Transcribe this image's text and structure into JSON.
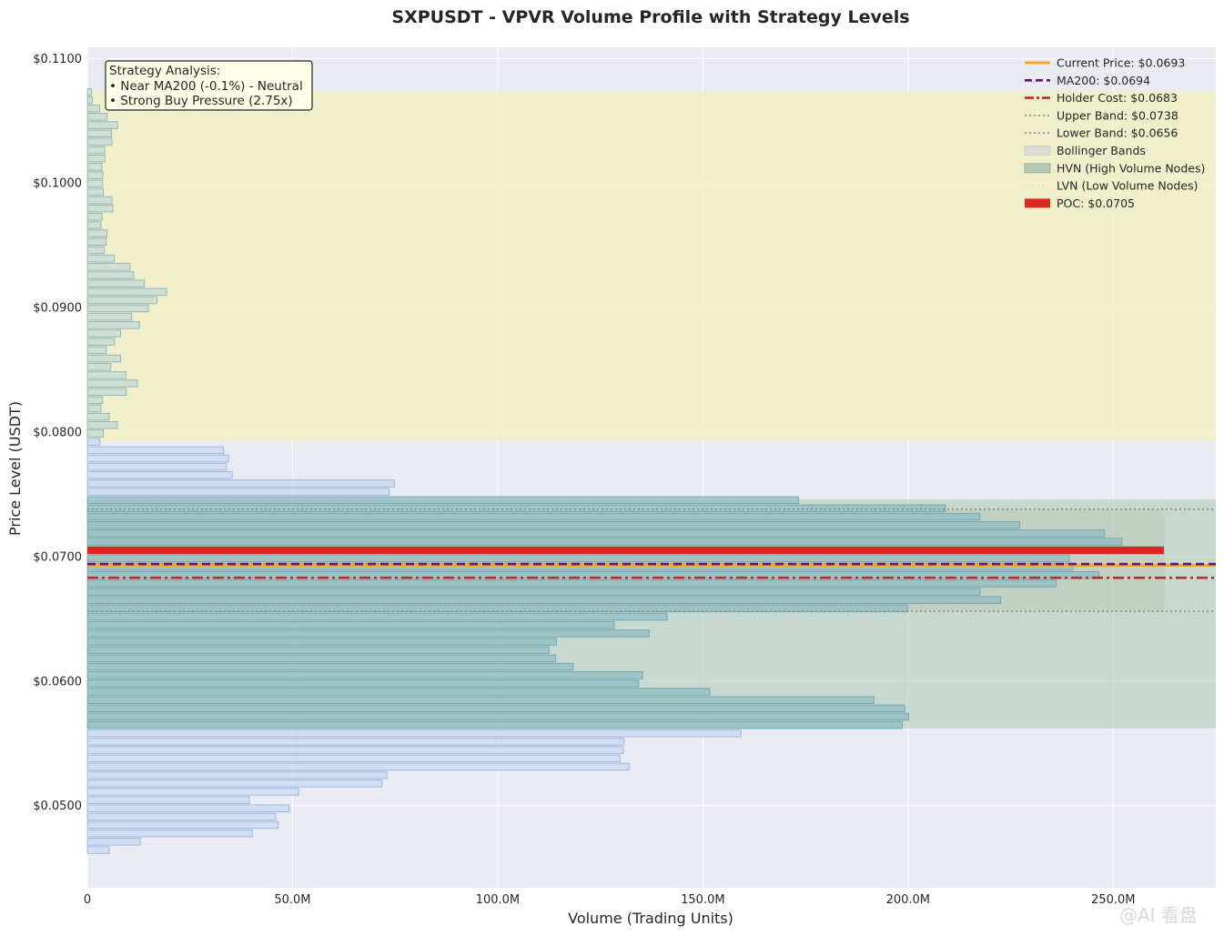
{
  "chart_data": {
    "type": "bar",
    "orientation": "horizontal",
    "title": "SXPUSDT - VPVR Volume Profile with Strategy Levels",
    "xlabel": "Volume (Trading Units)",
    "ylabel": "Price Level (USDT)",
    "xlim": [
      0,
      275000000
    ],
    "ylim": [
      0.0434,
      0.1109
    ],
    "x_ticks": [
      0,
      50000000,
      100000000,
      150000000,
      200000000,
      250000000
    ],
    "x_tick_labels": [
      "0",
      "50.0M",
      "100.0M",
      "150.0M",
      "200.0M",
      "250.0M"
    ],
    "y_ticks": [
      0.05,
      0.06,
      0.07,
      0.08,
      0.09,
      0.1,
      0.11
    ],
    "y_tick_labels": [
      "$0.0500",
      "$0.0600",
      "$0.0700",
      "$0.0800",
      "$0.0900",
      "$0.1000",
      "$0.1100"
    ],
    "grid": true,
    "legend_position": "top-right",
    "bin_height": 0.000669,
    "bins": [
      {
        "price": 0.04643,
        "volume": 5300000
      },
      {
        "price": 0.0471,
        "volume": 12900000
      },
      {
        "price": 0.04777,
        "volume": 40200000
      },
      {
        "price": 0.04844,
        "volume": 46500000
      },
      {
        "price": 0.04911,
        "volume": 45900000
      },
      {
        "price": 0.04978,
        "volume": 49200000
      },
      {
        "price": 0.05044,
        "volume": 39500000
      },
      {
        "price": 0.05111,
        "volume": 51500000
      },
      {
        "price": 0.05178,
        "volume": 71800000
      },
      {
        "price": 0.05245,
        "volume": 73000000
      },
      {
        "price": 0.05312,
        "volume": 132000000
      },
      {
        "price": 0.05379,
        "volume": 129800000
      },
      {
        "price": 0.05446,
        "volume": 130600000
      },
      {
        "price": 0.05513,
        "volume": 130800000
      },
      {
        "price": 0.0558,
        "volume": 159300000
      },
      {
        "price": 0.05647,
        "volume": 198600000
      },
      {
        "price": 0.05714,
        "volume": 200100000
      },
      {
        "price": 0.05781,
        "volume": 199200000
      },
      {
        "price": 0.05847,
        "volume": 191700000
      },
      {
        "price": 0.05914,
        "volume": 151700000
      },
      {
        "price": 0.05981,
        "volume": 134300000
      },
      {
        "price": 0.06048,
        "volume": 135300000
      },
      {
        "price": 0.06115,
        "volume": 118400000
      },
      {
        "price": 0.06182,
        "volume": 114100000
      },
      {
        "price": 0.06249,
        "volume": 112500000
      },
      {
        "price": 0.06316,
        "volume": 114300000
      },
      {
        "price": 0.06383,
        "volume": 136900000
      },
      {
        "price": 0.0645,
        "volume": 128400000
      },
      {
        "price": 0.06517,
        "volume": 141300000
      },
      {
        "price": 0.06584,
        "volume": 199900000
      },
      {
        "price": 0.0665,
        "volume": 222600000
      },
      {
        "price": 0.06717,
        "volume": 217500000
      },
      {
        "price": 0.06784,
        "volume": 236100000
      },
      {
        "price": 0.06851,
        "volume": 246500000
      },
      {
        "price": 0.06918,
        "volume": 240200000
      },
      {
        "price": 0.06985,
        "volume": 239300000
      },
      {
        "price": 0.07052,
        "volume": 262300000
      },
      {
        "price": 0.07119,
        "volume": 252100000
      },
      {
        "price": 0.07186,
        "volume": 247900000
      },
      {
        "price": 0.07253,
        "volume": 227200000
      },
      {
        "price": 0.0732,
        "volume": 217500000
      },
      {
        "price": 0.07387,
        "volume": 209100000
      },
      {
        "price": 0.07453,
        "volume": 173300000
      },
      {
        "price": 0.0752,
        "volume": 73600000
      },
      {
        "price": 0.07587,
        "volume": 74800000
      },
      {
        "price": 0.07654,
        "volume": 35300000
      },
      {
        "price": 0.07721,
        "volume": 33900000
      },
      {
        "price": 0.07788,
        "volume": 34400000
      },
      {
        "price": 0.07855,
        "volume": 33200000
      },
      {
        "price": 0.07922,
        "volume": 3000000
      },
      {
        "price": 0.07989,
        "volume": 3900000
      },
      {
        "price": 0.08056,
        "volume": 7300000
      },
      {
        "price": 0.08123,
        "volume": 5300000
      },
      {
        "price": 0.0819,
        "volume": 3300000
      },
      {
        "price": 0.08256,
        "volume": 3700000
      },
      {
        "price": 0.08323,
        "volume": 9500000
      },
      {
        "price": 0.0839,
        "volume": 12200000
      },
      {
        "price": 0.08457,
        "volume": 9400000
      },
      {
        "price": 0.08524,
        "volume": 5700000
      },
      {
        "price": 0.08591,
        "volume": 8100000
      },
      {
        "price": 0.08658,
        "volume": 4600000
      },
      {
        "price": 0.08725,
        "volume": 6600000
      },
      {
        "price": 0.08792,
        "volume": 8100000
      },
      {
        "price": 0.08859,
        "volume": 12700000
      },
      {
        "price": 0.08926,
        "volume": 10800000
      },
      {
        "price": 0.08993,
        "volume": 14900000
      },
      {
        "price": 0.09059,
        "volume": 17000000
      },
      {
        "price": 0.09126,
        "volume": 19300000
      },
      {
        "price": 0.09193,
        "volume": 13900000
      },
      {
        "price": 0.0926,
        "volume": 11300000
      },
      {
        "price": 0.09327,
        "volume": 10400000
      },
      {
        "price": 0.09394,
        "volume": 6600000
      },
      {
        "price": 0.09461,
        "volume": 4100000
      },
      {
        "price": 0.09528,
        "volume": 4600000
      },
      {
        "price": 0.09595,
        "volume": 4800000
      },
      {
        "price": 0.09662,
        "volume": 3300000
      },
      {
        "price": 0.09729,
        "volume": 3600000
      },
      {
        "price": 0.09796,
        "volume": 6200000
      },
      {
        "price": 0.09862,
        "volume": 6000000
      },
      {
        "price": 0.09929,
        "volume": 3900000
      },
      {
        "price": 0.09996,
        "volume": 3700000
      },
      {
        "price": 0.10063,
        "volume": 3800000
      },
      {
        "price": 0.1013,
        "volume": 3600000
      },
      {
        "price": 0.10197,
        "volume": 4300000
      },
      {
        "price": 0.10264,
        "volume": 4200000
      },
      {
        "price": 0.10331,
        "volume": 6000000
      },
      {
        "price": 0.10398,
        "volume": 5900000
      },
      {
        "price": 0.10465,
        "volume": 7400000
      },
      {
        "price": 0.10532,
        "volume": 4800000
      },
      {
        "price": 0.10599,
        "volume": 3000000
      },
      {
        "price": 0.10665,
        "volume": 1200000
      },
      {
        "price": 0.10732,
        "volume": 1000000
      }
    ],
    "zones": {
      "hvn": [
        [
          0.0562,
          0.0746
        ]
      ],
      "lvn": [
        [
          0.0793,
          0.1074
        ]
      ],
      "bollinger_bands": [
        0.0656,
        0.0738
      ]
    },
    "bollinger_band_volume_extent": 262500000,
    "levels": {
      "current_price": 0.0693,
      "ma200": 0.0694,
      "holder_cost": 0.0683,
      "upper_band": 0.0738,
      "lower_band": 0.0656,
      "poc": 0.0705
    },
    "legend": [
      {
        "key": "current_price",
        "label": "Current Price: $0.0693",
        "style": "solid",
        "color": "#f5a623"
      },
      {
        "key": "ma200",
        "label": "MA200: $0.0694",
        "style": "dashed",
        "color": "#6a0d83"
      },
      {
        "key": "holder_cost",
        "label": "Holder Cost: $0.0683",
        "style": "dashdot",
        "color": "#b03030"
      },
      {
        "key": "upper_band",
        "label": "Upper Band: $0.0738",
        "style": "dotted",
        "color": "#8c8c8c"
      },
      {
        "key": "lower_band",
        "label": "Lower Band: $0.0656",
        "style": "dotted",
        "color": "#8c8c8c"
      },
      {
        "key": "bollinger",
        "label": "Bollinger Bands",
        "style": "patch",
        "color": "#d9dccf"
      },
      {
        "key": "hvn",
        "label": "HVN (High Volume Nodes)",
        "style": "hatch",
        "color": "#b7c7b5"
      },
      {
        "key": "lvn",
        "label": "LVN (Low Volume Nodes)",
        "style": "lvn-dotted",
        "color": "#e8e26a"
      },
      {
        "key": "poc",
        "label": "POC: $0.0705",
        "style": "bar",
        "color": "#d9281f"
      }
    ],
    "annotation": {
      "lines": [
        "Strategy Analysis:",
        "• Near MA200 (-0.1%) - Neutral",
        "• Strong Buy Pressure (2.75x)"
      ]
    },
    "colors": {
      "plot_bg": "#eaeaf2",
      "bar_fill": "#c6dbf0",
      "bar_stroke": "#9fb8e0",
      "hvn_fill": "#aac8b2",
      "lvn_fill": "#f1f0c6",
      "bollinger_fill": "#bcc7b6",
      "poc": "#d9281f",
      "current_price": "#f5a623",
      "ma200": "#6a0d83",
      "holder_cost": "#b03030",
      "band_line": "#8c8c8c"
    }
  },
  "watermark": "@AI 看盘"
}
